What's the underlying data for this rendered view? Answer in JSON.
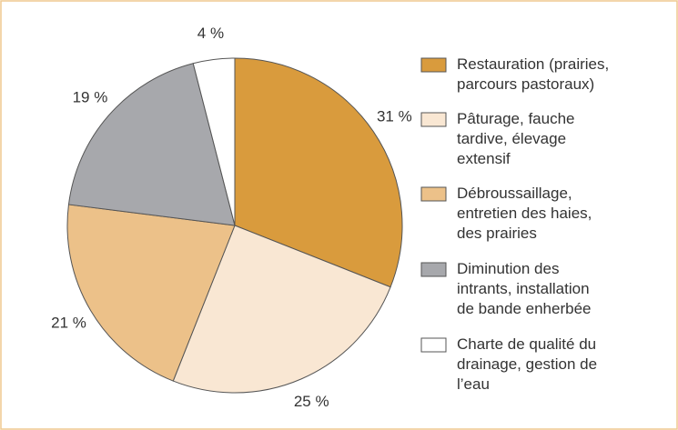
{
  "chart_data": {
    "type": "pie",
    "categories": [
      "Restauration (prairies,\nparcours pastoraux)",
      "Pâturage, fauche\ntardive, élevage\nextensif",
      "Débroussaillage,\nentretien des haies,\ndes prairies",
      "Diminution des\nintrants, installation\nde bande enherbée",
      "Charte de qualité du\ndrainage, gestion de\nl’eau"
    ],
    "values": [
      31,
      25,
      21,
      19,
      4
    ],
    "value_labels": [
      "31 %",
      "25 %",
      "21 %",
      "19 %",
      "4 %"
    ],
    "colors": [
      "#d99b3d",
      "#f9e7d3",
      "#ecc189",
      "#a7a8ac",
      "#ffffff"
    ],
    "legend": "right"
  }
}
